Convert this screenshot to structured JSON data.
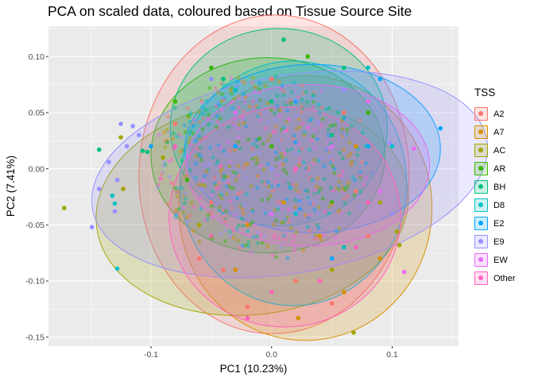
{
  "chart_data": {
    "type": "scatter",
    "title": "PCA on scaled data, coloured based on Tissue Source Site",
    "xlabel": "PC1 (10.23%)",
    "ylabel": "PC2 (7.41%)",
    "xlim": [
      -0.185,
      0.155
    ],
    "ylim": [
      -0.158,
      0.127
    ],
    "x_ticks": [
      -0.1,
      0.0,
      0.1
    ],
    "x_tick_labels": [
      "-0.1",
      "0.0",
      "0.1"
    ],
    "y_ticks": [
      -0.15,
      -0.1,
      -0.05,
      0.0,
      0.05,
      0.1
    ],
    "y_tick_labels": [
      "-0.15",
      "-0.10",
      "-0.05",
      "0.00",
      "0.05",
      "0.10"
    ],
    "grid": true,
    "legend_title": "TSS",
    "legend_position": "right",
    "series": [
      {
        "name": "A2",
        "color": "#F8766D",
        "ellipse": {
          "cx": 0.002,
          "cy": -0.005,
          "rx": 0.112,
          "ry": 0.142,
          "angle": 2
        },
        "points": [
          [
            -0.02,
            -0.123
          ],
          [
            0.05,
            -0.12
          ],
          [
            -0.06,
            -0.08
          ],
          [
            0.08,
            -0.06
          ],
          [
            -0.04,
            -0.09
          ],
          [
            0.02,
            -0.1
          ],
          [
            -0.08,
            0.04
          ],
          [
            0.06,
            0.05
          ],
          [
            0.0,
            0.08
          ],
          [
            -0.05,
            -0.03
          ],
          [
            0.03,
            0.0
          ],
          [
            0.07,
            -0.02
          ]
        ]
      },
      {
        "name": "A7",
        "color": "#D89000",
        "ellipse": {
          "cx": 0.028,
          "cy": -0.035,
          "rx": 0.105,
          "ry": 0.118,
          "angle": 0
        },
        "points": [
          [
            0.022,
            -0.133
          ],
          [
            0.09,
            -0.08
          ],
          [
            0.06,
            -0.11
          ],
          [
            -0.03,
            -0.09
          ],
          [
            0.04,
            -0.06
          ],
          [
            0.1,
            -0.04
          ],
          [
            -0.02,
            -0.05
          ],
          [
            0.07,
            0.02
          ],
          [
            0.01,
            -0.03
          ]
        ]
      },
      {
        "name": "AC",
        "color": "#A3A500",
        "ellipse": {
          "cx": -0.016,
          "cy": -0.035,
          "rx": 0.13,
          "ry": 0.095,
          "angle": -7
        },
        "points": [
          [
            -0.172,
            -0.035
          ],
          [
            0.068,
            -0.146
          ],
          [
            0.104,
            -0.056
          ],
          [
            0.106,
            -0.068
          ],
          [
            -0.125,
            0.028
          ],
          [
            -0.123,
            -0.018
          ],
          [
            -0.09,
            0.01
          ],
          [
            0.05,
            -0.09
          ],
          [
            0.09,
            -0.03
          ],
          [
            -0.06,
            -0.05
          ]
        ]
      },
      {
        "name": "AR",
        "color": "#39B600",
        "ellipse": {
          "cx": -0.003,
          "cy": 0.012,
          "rx": 0.097,
          "ry": 0.087,
          "angle": 0
        },
        "points": [
          [
            -0.08,
            0.06
          ],
          [
            -0.05,
            0.09
          ],
          [
            0.03,
            0.1
          ],
          [
            0.08,
            0.05
          ],
          [
            -0.07,
            -0.01
          ],
          [
            0.05,
            -0.03
          ],
          [
            0.0,
            0.02
          ]
        ]
      },
      {
        "name": "BH",
        "color": "#00BF7D",
        "ellipse": {
          "cx": 0.006,
          "cy": 0.037,
          "rx": 0.09,
          "ry": 0.088,
          "angle": 0
        },
        "points": [
          [
            -0.143,
            0.017
          ],
          [
            -0.107,
            0.016
          ],
          [
            -0.103,
            0.015
          ],
          [
            0.01,
            0.115
          ],
          [
            0.06,
            0.09
          ],
          [
            -0.04,
            0.08
          ],
          [
            0.0,
            0.06
          ],
          [
            0.05,
            0.03
          ]
        ]
      },
      {
        "name": "D8",
        "color": "#00BFC4",
        "ellipse": {
          "cx": 0.018,
          "cy": -0.013,
          "rx": 0.094,
          "ry": 0.109,
          "angle": 0
        },
        "points": [
          [
            -0.128,
            -0.089
          ],
          [
            -0.132,
            -0.024
          ],
          [
            -0.13,
            -0.031
          ],
          [
            0.08,
            0.09
          ],
          [
            0.06,
            -0.07
          ],
          [
            -0.03,
            0.07
          ],
          [
            0.1,
            0.02
          ],
          [
            0.02,
            -0.04
          ]
        ]
      },
      {
        "name": "E2",
        "color": "#00A5FF",
        "ellipse": {
          "cx": 0.034,
          "cy": 0.018,
          "rx": 0.106,
          "ry": 0.075,
          "angle": 0
        },
        "points": [
          [
            0.14,
            0.036
          ],
          [
            -0.1,
            0.02
          ],
          [
            0.08,
            0.02
          ],
          [
            0.05,
            -0.08
          ],
          [
            0.02,
            0.06
          ],
          [
            0.09,
            0.08
          ],
          [
            -0.03,
            0.02
          ]
        ]
      },
      {
        "name": "E9",
        "color": "#9590FF",
        "ellipse": {
          "cx": 0.015,
          "cy": -0.005,
          "rx": 0.166,
          "ry": 0.088,
          "angle": -10
        },
        "points": [
          [
            -0.149,
            -0.052
          ],
          [
            -0.143,
            -0.018
          ],
          [
            -0.135,
            0.006
          ],
          [
            -0.13,
            -0.038
          ],
          [
            -0.128,
            -0.01
          ],
          [
            -0.12,
            0.02
          ],
          [
            -0.115,
            0.038
          ],
          [
            -0.125,
            0.04
          ],
          [
            -0.11,
            0.03
          ],
          [
            0.098,
            0.023
          ],
          [
            0.1,
            -0.04
          ],
          [
            0.06,
            0.07
          ],
          [
            -0.05,
            0.08
          ],
          [
            0.0,
            0.0
          ]
        ]
      },
      {
        "name": "EW",
        "color": "#E76BF3",
        "ellipse": {
          "cx": 0.03,
          "cy": 0.003,
          "rx": 0.101,
          "ry": 0.072,
          "angle": 0
        },
        "points": [
          [
            0.118,
            0.018
          ],
          [
            0.11,
            -0.092
          ],
          [
            0.08,
            0.06
          ],
          [
            0.09,
            -0.02
          ],
          [
            -0.03,
            0.05
          ],
          [
            0.0,
            -0.04
          ],
          [
            0.05,
            0.02
          ]
        ]
      },
      {
        "name": "Other",
        "color": "#FF62BC",
        "ellipse": {
          "cx": 0.011,
          "cy": -0.043,
          "rx": 0.096,
          "ry": 0.098,
          "angle": 0
        },
        "points": [
          [
            -0.02,
            -0.133
          ],
          [
            0.0,
            -0.11
          ],
          [
            0.04,
            -0.1
          ],
          [
            0.07,
            -0.07
          ],
          [
            -0.05,
            -0.06
          ],
          [
            0.08,
            -0.03
          ],
          [
            0.02,
            0.0
          ],
          [
            -0.08,
            0.02
          ]
        ]
      }
    ]
  }
}
